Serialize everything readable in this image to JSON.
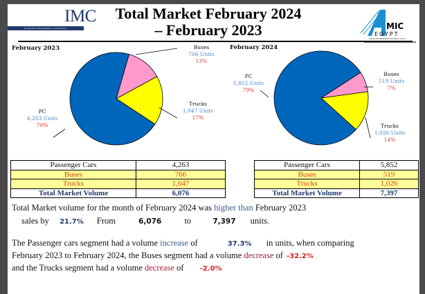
{
  "header": {
    "title_line1": "Total Market February 2024",
    "title_line2": "– February 2023",
    "imc_logo": "IMC",
    "imc_subtitle": "Integrated Management Consultancy",
    "amic_logo": "AMIC EGYPT",
    "amic_subtitle": "Automotive Marketing Information Council"
  },
  "chart_data": [
    {
      "type": "pie",
      "title": "February 2023",
      "slices": [
        {
          "name": "Buses",
          "units_label": "766  Units",
          "value": 766,
          "percent_label": "13%",
          "color": "#ff99cc"
        },
        {
          "name": "Trucks",
          "units_label": "1,047 Units",
          "value": 1047,
          "percent_label": "17%",
          "color": "#ffff00"
        },
        {
          "name": "PC",
          "units_label": "4,263 Units",
          "value": 4263,
          "percent_label": "70%",
          "color": "#0066bb"
        }
      ]
    },
    {
      "type": "pie",
      "title": "February 2024",
      "slices": [
        {
          "name": "Buses",
          "units_label": "519 Units",
          "value": 519,
          "percent_label": "7%",
          "color": "#ff99cc"
        },
        {
          "name": "Trucks",
          "units_label": "1,026 Units",
          "value": 1026,
          "percent_label": "14%",
          "color": "#ffff00"
        },
        {
          "name": "PC",
          "units_label": "5,852 Units",
          "value": 5852,
          "percent_label": "79%",
          "color": "#0066bb"
        }
      ]
    }
  ],
  "tables": [
    {
      "rows": [
        [
          "Passenger Cars",
          "4,263"
        ],
        [
          "Buses",
          "766"
        ],
        [
          "Trucks",
          "1,047"
        ],
        [
          "Total Market Volume",
          "6,076"
        ]
      ]
    },
    {
      "rows": [
        [
          "Passenger Cars",
          "5,852"
        ],
        [
          "Buses",
          "519"
        ],
        [
          "Trucks",
          "1,026"
        ],
        [
          "Total Market Volume",
          "7,397"
        ]
      ]
    }
  ],
  "summary": {
    "p1a": "Total Market volume for the month of February 2024 was",
    "p1b": "higher than",
    "p1c": "February 2023",
    "p2a": "sales by",
    "growth": "21.7%",
    "from_label": "From",
    "from_value": "6,076",
    "to_label": "to",
    "to_value": "7,397",
    "units_label": "units.",
    "s1a": "The Passenger cars segment had a volume",
    "s1b": "increase",
    "s1c": "of",
    "pc_change": "37.3%",
    "s1d": "in units, when comparing",
    "s2a": "February 2023 to February 2024, the Buses segment had a volume",
    "s2b": "decrease",
    "s2c": "of",
    "bus_change": "-32.2%",
    "s3a": "and the Trucks segment had a volume",
    "s3b": "decrease",
    "s3c": "of",
    "truck_change": "-2.0%"
  }
}
